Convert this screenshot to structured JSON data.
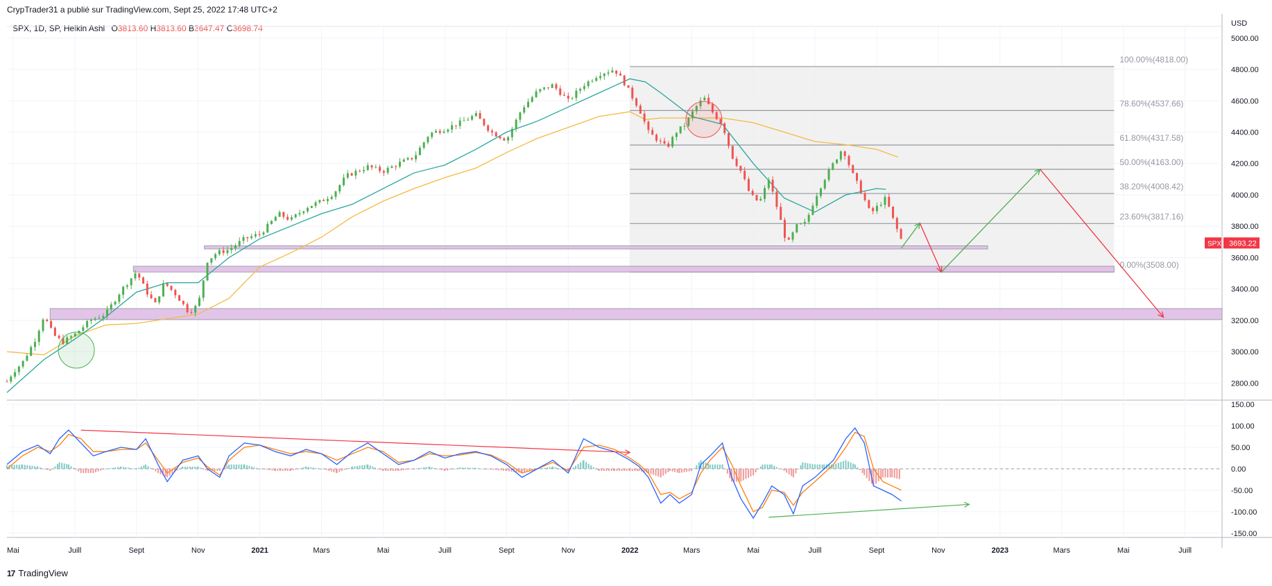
{
  "header": {
    "publisher_line": "CrypTrader31 a publié sur TradingView.com, Sept 25, 2022 17:48 UTC+2"
  },
  "legend": {
    "symbol_info": "SPX, 1D, SP, Heikin Ashi",
    "open_label": "O",
    "open_value": "3813.60",
    "high_label": "H",
    "high_value": "3813.60",
    "low_label": "B",
    "low_value": "3647.47",
    "close_label": "C",
    "close_value": "3698.74"
  },
  "footer": {
    "brand_logo": "17",
    "brand": "TradingView"
  },
  "colors": {
    "up": "#26a69a",
    "candle_up": "#4caf50",
    "candle_down": "#ef5350",
    "ema_fast": "#26a69a",
    "sma_slow": "#f5b942",
    "fib_fill": "#eeeeef",
    "zone_fill": "#e1bee7",
    "macd": "#2962ff",
    "signal": "#ff7f0e"
  },
  "chart_data": {
    "type": "candlestick",
    "symbol": "SPX",
    "currency": "USD",
    "price_axis": {
      "ticks": [
        2800,
        3000,
        3200,
        3400,
        3600,
        3800,
        4000,
        4200,
        4400,
        4600,
        4800,
        5000
      ],
      "tick_labels": [
        "2800.00",
        "3000.00",
        "3200.00",
        "3400.00",
        "3600.00",
        "3800.00",
        "4000.00",
        "4200.00",
        "4400.00",
        "4600.00",
        "4800.00",
        "5000.00"
      ],
      "range": [
        2700,
        5030
      ],
      "last_price_label": "3693.22",
      "last_price": 3693.22,
      "currency_label": "USD"
    },
    "time_axis": {
      "labels": [
        "Mai",
        "Juill",
        "Sept",
        "Nov",
        "2021",
        "Mars",
        "Mai",
        "Juill",
        "Sept",
        "Nov",
        "2022",
        "Mars",
        "Mai",
        "Juill",
        "Sept",
        "Nov",
        "2023",
        "Mars",
        "Mai",
        "Juill"
      ],
      "month_index": [
        0,
        2,
        4,
        6,
        8,
        10,
        12,
        14,
        16,
        18,
        20,
        22,
        24,
        26,
        28,
        30,
        32,
        34,
        36,
        38
      ],
      "range_months": [
        -0.2,
        39.2
      ],
      "bold_labels": [
        "2021",
        "2022",
        "2023"
      ]
    },
    "price_series": {
      "month_index": [
        -0.2,
        0,
        0.3,
        0.7,
        1.0,
        1.3,
        1.6,
        2.0,
        2.5,
        3.0,
        3.5,
        4.0,
        4.3,
        4.6,
        4.9,
        5.3,
        5.7,
        6.0,
        6.3,
        6.6,
        7.0,
        7.5,
        8.0,
        8.3,
        8.6,
        9.0,
        9.5,
        10.0,
        10.4,
        10.8,
        11.5,
        12.0,
        12.5,
        13.0,
        13.5,
        14.0,
        14.5,
        15.0,
        15.5,
        16.0,
        16.5,
        17.0,
        17.5,
        18.0,
        18.5,
        19.0,
        19.5,
        19.8,
        20.0,
        20.3,
        20.6,
        20.9,
        21.2,
        21.5,
        21.8,
        22.1,
        22.4,
        22.7,
        23.0,
        23.3,
        23.6,
        23.9,
        24.2,
        24.5,
        24.8,
        25.1,
        25.4,
        25.7,
        26.0,
        26.3,
        26.6,
        26.9,
        27.2,
        27.5,
        27.8,
        28.1,
        28.3,
        28.5,
        28.7,
        28.85
      ],
      "close": [
        2810,
        2870,
        2930,
        3070,
        3230,
        3110,
        3060,
        3110,
        3200,
        3240,
        3390,
        3510,
        3390,
        3300,
        3440,
        3360,
        3250,
        3300,
        3580,
        3630,
        3650,
        3720,
        3750,
        3810,
        3880,
        3840,
        3920,
        3960,
        4010,
        4120,
        4180,
        4150,
        4200,
        4240,
        4390,
        4420,
        4460,
        4510,
        4400,
        4350,
        4550,
        4660,
        4700,
        4600,
        4700,
        4770,
        4800,
        4720,
        4650,
        4550,
        4400,
        4350,
        4300,
        4400,
        4450,
        4550,
        4620,
        4520,
        4450,
        4250,
        4150,
        4000,
        3950,
        4100,
        3900,
        3680,
        3800,
        3820,
        3980,
        4100,
        4200,
        4300,
        4140,
        4020,
        3880,
        3940,
        3980,
        3860,
        3760,
        3690
      ]
    },
    "ema_fast": {
      "month_index": [
        -0.2,
        1,
        2,
        3,
        4,
        5,
        6,
        7,
        8,
        9,
        10,
        11,
        12,
        13,
        14,
        15,
        16,
        17,
        18,
        19,
        20,
        20.5,
        21,
        22,
        23,
        24,
        25,
        26,
        27,
        28,
        28.3
      ],
      "values": [
        2740,
        2950,
        3080,
        3220,
        3380,
        3440,
        3440,
        3600,
        3720,
        3800,
        3880,
        3940,
        4040,
        4140,
        4190,
        4290,
        4400,
        4470,
        4560,
        4650,
        4740,
        4720,
        4650,
        4500,
        4450,
        4200,
        3980,
        3890,
        4000,
        4040,
        4035
      ]
    },
    "sma_slow": {
      "month_index": [
        -0.2,
        1,
        2,
        3,
        4,
        5,
        6,
        7,
        8,
        9,
        10,
        11,
        12,
        13,
        14,
        15,
        16,
        17,
        18,
        19,
        20,
        20.5,
        21,
        22,
        23,
        24,
        25,
        26,
        27,
        28,
        28.7
      ],
      "values": [
        3000,
        2980,
        3100,
        3170,
        3180,
        3210,
        3240,
        3340,
        3540,
        3630,
        3730,
        3860,
        3960,
        4040,
        4110,
        4170,
        4270,
        4360,
        4430,
        4500,
        4530,
        4480,
        4490,
        4490,
        4490,
        4460,
        4400,
        4340,
        4320,
        4290,
        4240
      ]
    },
    "fibonacci": {
      "levels": [
        {
          "label": "100.00%(4818.00)",
          "price": 4818.0
        },
        {
          "label": "78.60%(4537.66)",
          "price": 4537.66
        },
        {
          "label": "61.80%(4317.58)",
          "price": 4317.58
        },
        {
          "label": "50.00%(4163.00)",
          "price": 4163.0
        },
        {
          "label": "38.20%(4008.42)",
          "price": 4008.42
        },
        {
          "label": "23.60%(3817.16)",
          "price": 3817.16
        },
        {
          "label": "0.00%(3508.00)",
          "price": 3508.0
        }
      ],
      "start_month": 20.0,
      "end_month": 35.7
    },
    "support_zones": [
      {
        "from_month": 6.2,
        "to_month": 31.6,
        "low": 3655,
        "high": 3675
      },
      {
        "from_month": 3.9,
        "to_month": 35.7,
        "low": 3508,
        "high": 3545
      },
      {
        "from_month": 1.2,
        "to_month": 39.2,
        "low": 3205,
        "high": 3275
      }
    ],
    "projection_arrows": [
      {
        "color": "green",
        "points": [
          [
            28.8,
            3660
          ],
          [
            29.4,
            3820
          ]
        ]
      },
      {
        "color": "red",
        "points": [
          [
            29.4,
            3820
          ],
          [
            30.1,
            3508
          ]
        ]
      },
      {
        "color": "green",
        "points": [
          [
            30.1,
            3508
          ],
          [
            33.3,
            4163
          ]
        ]
      },
      {
        "color": "red",
        "points": [
          [
            33.3,
            4163
          ],
          [
            37.3,
            3220
          ]
        ]
      }
    ],
    "annotations": [
      {
        "shape": "circle",
        "color": "green",
        "month": 2.05,
        "price": 3010
      },
      {
        "shape": "circle",
        "color": "red",
        "month": 22.4,
        "price": 4480
      }
    ],
    "macd": {
      "axis_ticks": [
        150,
        100,
        50,
        0,
        -50,
        -100,
        -150
      ],
      "axis_labels": [
        "150.00",
        "100.00",
        "50.00",
        "0.00",
        "-50.00",
        "-100.00",
        "-150.00"
      ],
      "range": [
        -160,
        155
      ],
      "month_index": [
        -0.2,
        0.3,
        0.8,
        1.2,
        1.5,
        1.8,
        2.2,
        2.6,
        3.0,
        3.5,
        4.0,
        4.3,
        4.7,
        5.0,
        5.5,
        6.0,
        6.3,
        6.7,
        7.0,
        7.5,
        8.0,
        8.5,
        9.0,
        9.5,
        10.0,
        10.5,
        11.0,
        11.5,
        12.0,
        12.5,
        13.0,
        13.5,
        14.0,
        14.5,
        15.0,
        15.5,
        16.0,
        16.5,
        17.0,
        17.5,
        18.0,
        18.5,
        19.0,
        19.5,
        20.0,
        20.3,
        20.6,
        21.0,
        21.3,
        21.6,
        22.0,
        22.3,
        22.6,
        23.0,
        23.3,
        23.6,
        24.0,
        24.3,
        24.6,
        25.0,
        25.3,
        25.6,
        26.0,
        26.3,
        26.6,
        27.0,
        27.3,
        27.6,
        27.9,
        28.2,
        28.5,
        28.8
      ],
      "macd_line": [
        10,
        40,
        55,
        35,
        70,
        90,
        60,
        30,
        40,
        50,
        45,
        70,
        10,
        -30,
        20,
        30,
        0,
        -20,
        30,
        60,
        55,
        40,
        30,
        45,
        35,
        10,
        40,
        60,
        35,
        10,
        20,
        40,
        25,
        35,
        40,
        30,
        10,
        -20,
        0,
        20,
        -10,
        70,
        50,
        40,
        20,
        5,
        -20,
        -80,
        -60,
        -80,
        -60,
        10,
        30,
        60,
        -20,
        -70,
        -115,
        -80,
        -40,
        -60,
        -105,
        -40,
        -20,
        0,
        20,
        70,
        95,
        60,
        -40,
        -50,
        -60,
        -75
      ],
      "signal_line": [
        0,
        30,
        50,
        40,
        55,
        80,
        70,
        40,
        40,
        45,
        45,
        60,
        20,
        -10,
        15,
        25,
        5,
        -15,
        20,
        50,
        55,
        45,
        35,
        40,
        35,
        20,
        35,
        50,
        40,
        15,
        20,
        35,
        30,
        32,
        38,
        32,
        15,
        -10,
        0,
        15,
        -5,
        50,
        55,
        45,
        25,
        10,
        -10,
        -60,
        -55,
        -70,
        -55,
        -10,
        20,
        50,
        10,
        -40,
        -100,
        -90,
        -50,
        -55,
        -85,
        -55,
        -30,
        -10,
        10,
        50,
        85,
        75,
        0,
        -30,
        -40,
        -50
      ],
      "histogram": [
        8,
        10,
        5,
        -5,
        15,
        10,
        -10,
        -10,
        0,
        5,
        0,
        10,
        -10,
        -20,
        5,
        5,
        -5,
        -5,
        10,
        10,
        0,
        -5,
        -5,
        5,
        0,
        -10,
        5,
        10,
        -5,
        -5,
        0,
        5,
        -5,
        3,
        2,
        -2,
        -5,
        -10,
        0,
        5,
        -5,
        20,
        -5,
        -5,
        -5,
        -5,
        -10,
        -20,
        -5,
        -10,
        -5,
        20,
        10,
        10,
        -30,
        -30,
        -15,
        10,
        10,
        -5,
        -20,
        15,
        10,
        10,
        10,
        20,
        10,
        -15,
        -40,
        -20,
        -20,
        -25
      ],
      "bearish_divergence_line": [
        [
          2.2,
          90
        ],
        [
          20.0,
          38
        ]
      ],
      "bullish_divergence_line": [
        [
          24.5,
          -113
        ],
        [
          31.0,
          -83
        ]
      ]
    }
  }
}
